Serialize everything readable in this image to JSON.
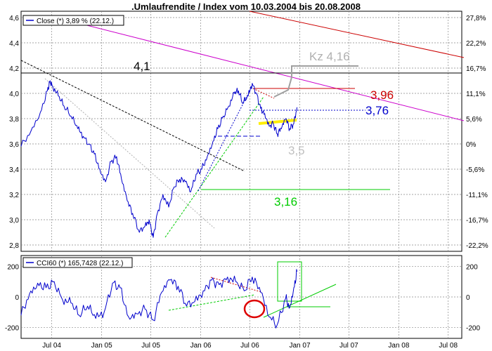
{
  "title": ".Umlaufrendite / Index vom 10.03.2004 bis 20.08.2008",
  "colors": {
    "price_line": "#0000cc",
    "magenta_trend": "#cc00cc",
    "red_trend": "#cc0000",
    "green": "#00cc00",
    "gray": "#a0a0a0",
    "yellow": "#ffee00",
    "grid": "#888888"
  },
  "chart_data": [
    {
      "type": "line",
      "legend": "Close (*) 3,89 % (22.12.)",
      "legend_placement": "top-left",
      "grid": true,
      "ylim": [
        2.75,
        4.65
      ],
      "y_ticks": [
        "2,8",
        "3,0",
        "3,2",
        "3,4",
        "3,6",
        "3,8",
        "4,0",
        "4,2",
        "4,4",
        "4,6"
      ],
      "y_tick_values": [
        2.8,
        3.0,
        3.2,
        3.4,
        3.6,
        3.8,
        4.0,
        4.2,
        4.4,
        4.6
      ],
      "right_ticks": [
        "27,8%",
        "22,2%",
        "16,7%",
        "11,1%",
        "5,6%",
        "0%",
        "-5,6%",
        "-11,1%",
        "-16,7%",
        "-22,2%"
      ],
      "right_tick_values": [
        4.6,
        4.4,
        4.2,
        4.0,
        3.8,
        3.6,
        3.4,
        3.2,
        3.0,
        2.8
      ],
      "annotations": [
        {
          "text": "4,1",
          "value": 4.1
        },
        {
          "text": "Kz 4,16",
          "value": 4.16
        },
        {
          "text": "3,96",
          "value": 3.96
        },
        {
          "text": "3,76",
          "value": 3.76
        },
        {
          "text": "3,5",
          "value": 3.5
        },
        {
          "text": "3,16",
          "value": 3.16
        }
      ],
      "series": [
        {
          "name": "Close (*) 3,89 % (22.12.)",
          "x": [
            "2004-03-10",
            "2004-04-15",
            "2004-05-20",
            "2004-06-15",
            "2004-06-25",
            "2004-07-05",
            "2004-07-25",
            "2004-08-15",
            "2004-09-10",
            "2004-10-05",
            "2004-10-25",
            "2004-11-15",
            "2004-12-05",
            "2004-12-25",
            "2005-01-15",
            "2005-02-05",
            "2005-02-25",
            "2005-03-15",
            "2005-04-05",
            "2005-04-25",
            "2005-05-20",
            "2005-06-10",
            "2005-06-25",
            "2005-07-10",
            "2005-07-25",
            "2005-08-15",
            "2005-09-05",
            "2005-09-25",
            "2005-10-15",
            "2005-11-05",
            "2005-11-25",
            "2005-12-15",
            "2006-01-05",
            "2006-01-25",
            "2006-02-15",
            "2006-03-05",
            "2006-03-25",
            "2006-04-15",
            "2006-05-05",
            "2006-05-20",
            "2006-06-05",
            "2006-06-25",
            "2006-07-10",
            "2006-07-25",
            "2006-08-10",
            "2006-08-25",
            "2006-09-10",
            "2006-09-25",
            "2006-10-10",
            "2006-10-25",
            "2006-11-10",
            "2006-11-25",
            "2006-12-10",
            "2006-12-22"
          ],
          "values": [
            3.58,
            3.7,
            3.85,
            4.02,
            4.1,
            4.05,
            3.98,
            3.9,
            3.82,
            3.72,
            3.66,
            3.6,
            3.52,
            3.4,
            3.3,
            3.46,
            3.5,
            3.32,
            3.15,
            3.05,
            2.9,
            2.95,
            3.0,
            2.86,
            3.05,
            3.2,
            3.1,
            3.26,
            3.32,
            3.3,
            3.22,
            3.36,
            3.4,
            3.5,
            3.62,
            3.72,
            3.82,
            3.9,
            4.0,
            4.02,
            3.92,
            3.98,
            4.08,
            4.0,
            3.88,
            3.84,
            3.74,
            3.76,
            3.68,
            3.72,
            3.8,
            3.72,
            3.76,
            3.89
          ]
        }
      ]
    },
    {
      "type": "line",
      "legend": "CCI60 (*) 165,7428 (22.12.)",
      "legend_placement": "top-left",
      "grid": true,
      "ylim": [
        -270,
        270
      ],
      "y_ticks": [
        "200",
        "0",
        "-200"
      ],
      "y_tick_values": [
        200,
        0,
        -200
      ],
      "x_ticks": [
        "Jul 04",
        "Jan 05",
        "Jul 05",
        "Jan 06",
        "Jul 06",
        "Jan 07",
        "Jul 07",
        "Jan 08",
        "Jul 08"
      ],
      "x_tick_values": [
        "2004-07-01",
        "2005-01-01",
        "2005-07-01",
        "2006-01-01",
        "2006-07-01",
        "2007-01-01",
        "2007-07-01",
        "2008-01-01",
        "2008-07-01"
      ],
      "series": [
        {
          "name": "CCI60 (*) 165,7428 (22.12.)",
          "x": [
            "2004-03-10",
            "2004-04-10",
            "2004-05-10",
            "2004-06-10",
            "2004-07-10",
            "2004-08-10",
            "2004-09-10",
            "2004-10-10",
            "2004-11-10",
            "2004-12-10",
            "2005-01-10",
            "2005-02-10",
            "2005-03-10",
            "2005-04-10",
            "2005-05-10",
            "2005-06-10",
            "2005-07-10",
            "2005-08-10",
            "2005-09-10",
            "2005-10-10",
            "2005-11-10",
            "2005-12-10",
            "2006-01-10",
            "2006-02-10",
            "2006-03-10",
            "2006-04-10",
            "2006-05-10",
            "2006-06-10",
            "2006-07-10",
            "2006-08-10",
            "2006-09-10",
            "2006-10-10",
            "2006-11-10",
            "2006-11-25",
            "2006-12-10",
            "2006-12-22"
          ],
          "values": [
            -120,
            20,
            90,
            60,
            100,
            -20,
            -40,
            -120,
            -60,
            -140,
            -100,
            90,
            60,
            -130,
            -110,
            -80,
            -150,
            30,
            110,
            70,
            -60,
            -30,
            40,
            110,
            80,
            130,
            100,
            40,
            130,
            30,
            -130,
            -180,
            -10,
            -70,
            60,
            165
          ]
        }
      ]
    }
  ]
}
